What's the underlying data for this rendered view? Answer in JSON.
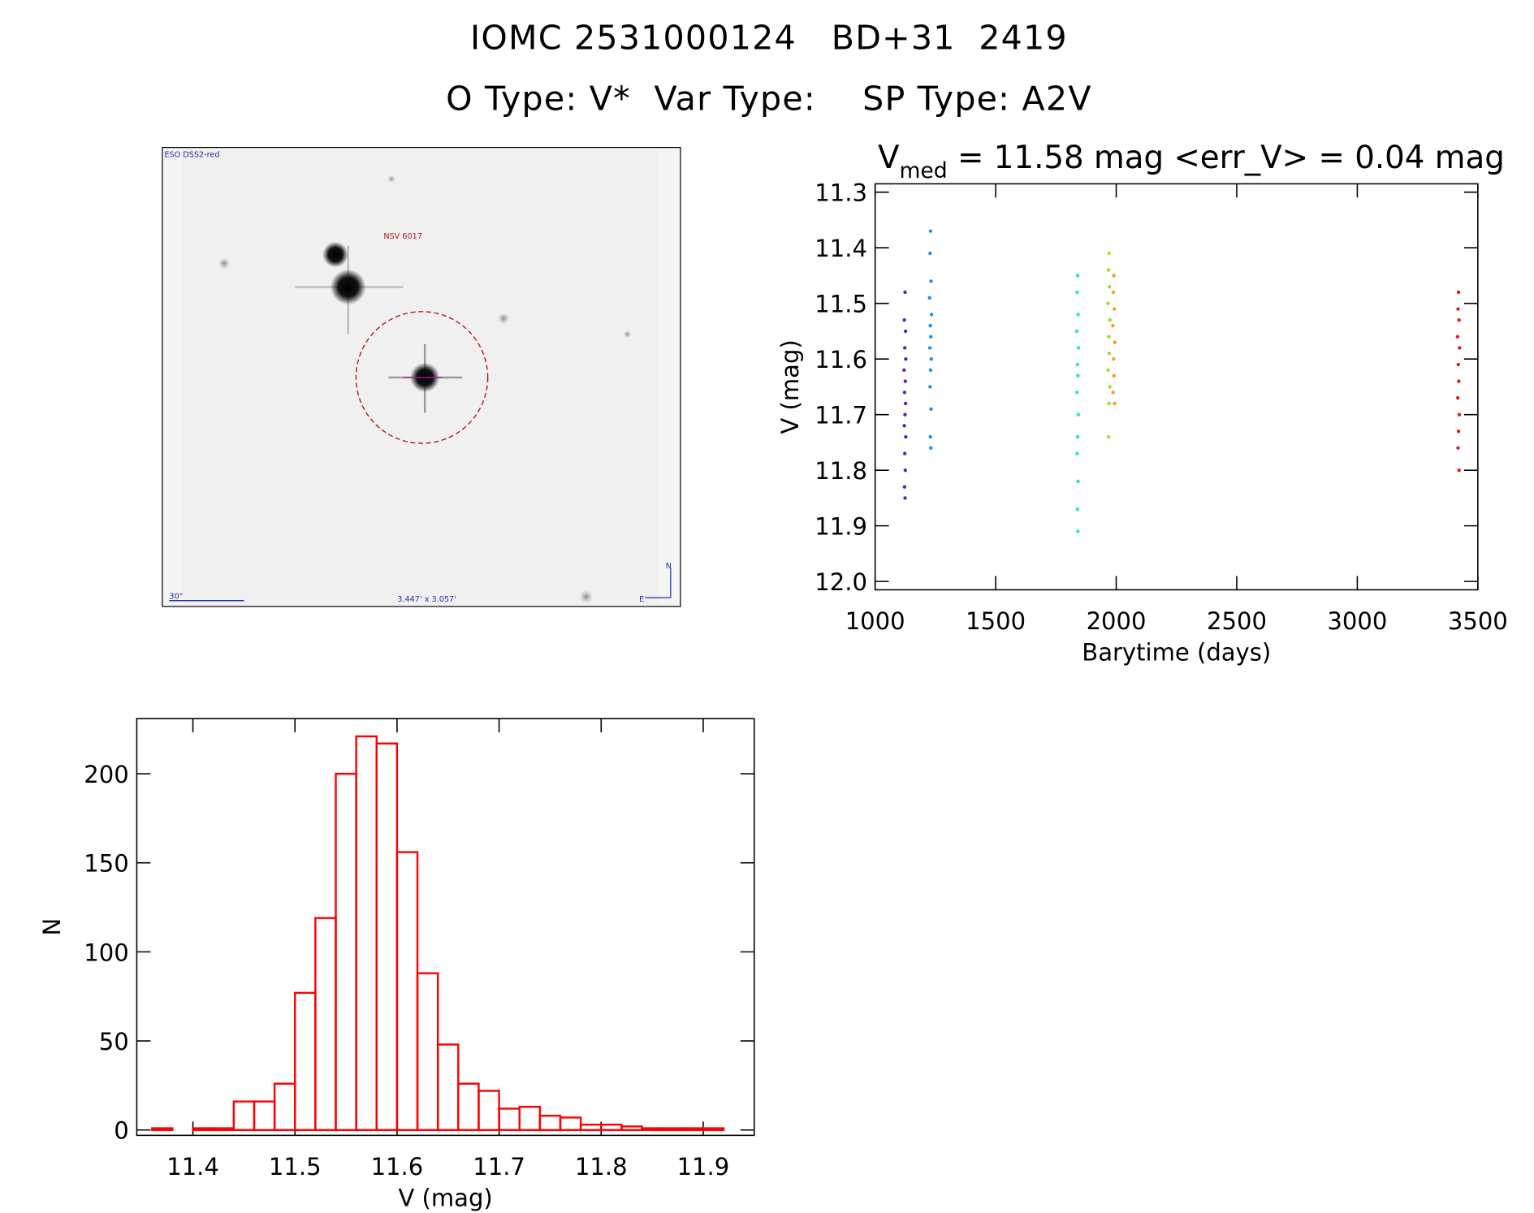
{
  "header": {
    "line1": "IOMC 2531000124   BD+31  2419",
    "line2": "O Type: V*  Var Type:    SP Type: A2V"
  },
  "image": {
    "labels": [
      "ESO DSS2-red",
      "NSV 6017",
      "30\"",
      "3.447' x 3.057'",
      "N",
      "E"
    ]
  },
  "chart_data": [
    {
      "type": "scatter",
      "title_parts": [
        "V",
        "med",
        " = 11.58 mag <err_V> = 0.04 mag"
      ],
      "xlabel": "Barytime (days)",
      "ylabel": "V (mag)",
      "xlim": [
        1000,
        3500
      ],
      "xticks": [
        1000,
        1500,
        2000,
        2500,
        3000,
        3500
      ],
      "ylim": [
        12.015,
        11.285
      ],
      "yticks": [
        11.3,
        11.4,
        11.5,
        11.6,
        11.7,
        11.8,
        11.9,
        {
          "value": 12,
          "label": "12.0"
        }
      ],
      "series": [
        {
          "color": "#5a22b8",
          "x": [
            1124,
            1121,
            1126,
            1123,
            1127,
            1120,
            1125,
            1122,
            1126,
            1124,
            1121,
            1127,
            1123,
            1125,
            1122,
            1124
          ],
          "values": [
            11.48,
            11.53,
            11.55,
            11.58,
            11.6,
            11.62,
            11.64,
            11.66,
            11.68,
            11.7,
            11.72,
            11.74,
            11.77,
            11.8,
            11.83,
            11.85
          ]
        },
        {
          "color": "#1e8fe0",
          "x": [
            1230,
            1228,
            1232,
            1226,
            1234,
            1229,
            1231,
            1227,
            1233,
            1230,
            1228,
            1232,
            1229,
            1231
          ],
          "values": [
            11.37,
            11.41,
            11.46,
            11.49,
            11.52,
            11.54,
            11.56,
            11.58,
            11.6,
            11.62,
            11.65,
            11.69,
            11.74,
            11.76
          ]
        },
        {
          "color": "#30e890",
          "x": [
            1840,
            1838,
            1842,
            1836,
            1844,
            1839,
            1841,
            1837,
            1843,
            1840,
            1838,
            1842,
            1839,
            1841
          ],
          "values": [
            11.45,
            11.48,
            11.52,
            11.55,
            11.58,
            11.61,
            11.63,
            11.66,
            11.7,
            11.74,
            11.77,
            11.82,
            11.87,
            11.91
          ]
        },
        {
          "color": "#9be020",
          "x": [
            1970,
            1968,
            1972,
            1966,
            1974,
            1969,
            1971,
            1967,
            1973,
            1970,
            1968
          ],
          "values": [
            11.41,
            11.44,
            11.47,
            11.5,
            11.53,
            11.56,
            11.59,
            11.62,
            11.65,
            11.68,
            11.74
          ]
        },
        {
          "color": "#f0a020",
          "x": [
            1990,
            1988,
            1992,
            1986,
            1994,
            1989,
            1991,
            1987,
            1993
          ],
          "values": [
            11.45,
            11.48,
            11.51,
            11.54,
            11.57,
            11.6,
            11.63,
            11.66,
            11.68
          ]
        },
        {
          "color": "#e01818",
          "x": [
            3420,
            3418,
            3422,
            3416,
            3424,
            3419,
            3421,
            3417,
            3423,
            3420,
            3418,
            3422
          ],
          "values": [
            11.48,
            11.51,
            11.53,
            11.56,
            11.58,
            11.61,
            11.64,
            11.67,
            11.7,
            11.73,
            11.76,
            11.8
          ]
        }
      ]
    },
    {
      "type": "histogram",
      "xlabel": "V (mag)",
      "ylabel": "N",
      "color": "#ff0000",
      "bins": [
        11.36,
        11.38,
        11.4,
        11.42,
        11.44,
        11.46,
        11.48,
        11.5,
        11.52,
        11.54,
        11.56,
        11.58,
        11.6,
        11.62,
        11.64,
        11.66,
        11.68,
        11.7,
        11.72,
        11.74,
        11.76,
        11.78,
        11.8,
        11.82,
        11.84,
        11.86,
        11.88,
        11.9,
        11.92
      ],
      "values": [
        1,
        0,
        1,
        1,
        16,
        16,
        26,
        77,
        119,
        200,
        221,
        217,
        156,
        88,
        48,
        26,
        22,
        12,
        13,
        8,
        7,
        3,
        3,
        2,
        1,
        1,
        1,
        1
      ],
      "xlim": [
        11.345,
        11.95
      ],
      "xticks": [
        11.4,
        11.5,
        11.6,
        11.7,
        11.8,
        11.9
      ],
      "ylim": [
        -3,
        231
      ],
      "yticks": [
        0,
        50,
        100,
        150,
        200
      ]
    }
  ]
}
